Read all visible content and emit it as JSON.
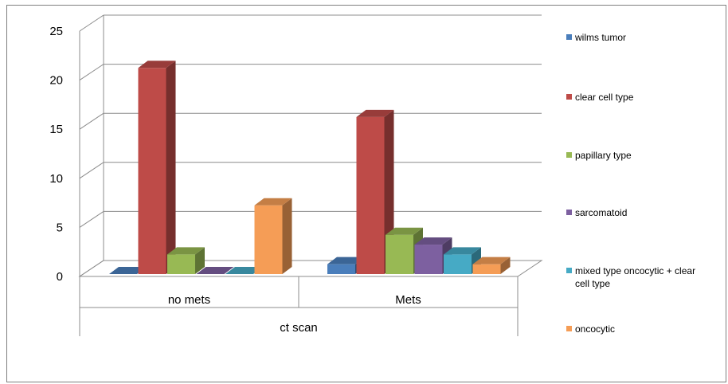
{
  "chart_data": {
    "type": "bar",
    "style": "3d-clustered-column",
    "categories": [
      "no mets",
      "Mets"
    ],
    "group_label": "ct scan",
    "ylim": [
      0,
      25
    ],
    "yticks": [
      0,
      5,
      10,
      15,
      20,
      25
    ],
    "grid": true,
    "legend_position": "right",
    "series": [
      {
        "name": "wilms tumor",
        "values": [
          0,
          1
        ],
        "color": "#4a7ebb"
      },
      {
        "name": "clear cell type",
        "values": [
          21,
          16
        ],
        "color": "#be4b48"
      },
      {
        "name": "papillary type",
        "values": [
          2,
          4
        ],
        "color": "#98b954"
      },
      {
        "name": "sarcomatoid",
        "values": [
          0,
          3
        ],
        "color": "#7d60a0"
      },
      {
        "name": "mixed type oncocytic + clear cell type",
        "values": [
          0,
          2
        ],
        "color": "#46aac5"
      },
      {
        "name": "oncocytic",
        "values": [
          7,
          1
        ],
        "color": "#f59d56"
      }
    ]
  }
}
